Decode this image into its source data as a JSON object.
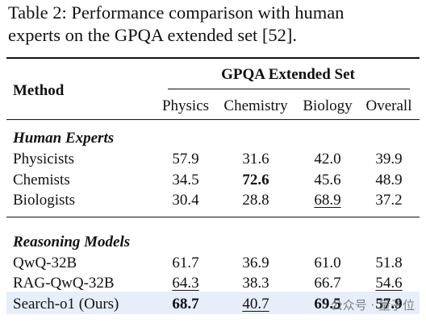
{
  "caption": {
    "lines": [
      "Table 2: Performance comparison with human",
      "experts on the GPQA extended set [52]."
    ]
  },
  "table": {
    "header": {
      "method": "Method",
      "group": "GPQA Extended Set",
      "columns": [
        "Physics",
        "Chemistry",
        "Biology",
        "Overall"
      ]
    },
    "sections": [
      {
        "title": "Human Experts",
        "rows": [
          {
            "method": "Physicists",
            "cells": [
              {
                "text": "57.9"
              },
              {
                "text": "31.6"
              },
              {
                "text": "42.0"
              },
              {
                "text": "39.9"
              }
            ]
          },
          {
            "method": "Chemists",
            "cells": [
              {
                "text": "34.5"
              },
              {
                "text": "72.6",
                "bold": true
              },
              {
                "text": "45.6"
              },
              {
                "text": "48.9"
              }
            ]
          },
          {
            "method": "Biologists",
            "cells": [
              {
                "text": "30.4"
              },
              {
                "text": "28.8"
              },
              {
                "text": "68.9",
                "underline": true
              },
              {
                "text": "37.2"
              }
            ]
          }
        ]
      },
      {
        "title": "Reasoning Models",
        "rows": [
          {
            "method": "QwQ-32B",
            "cells": [
              {
                "text": "61.7"
              },
              {
                "text": "36.9"
              },
              {
                "text": "61.0"
              },
              {
                "text": "51.8"
              }
            ]
          },
          {
            "method": "RAG-QwQ-32B",
            "cells": [
              {
                "text": "64.3",
                "underline": true
              },
              {
                "text": "38.3"
              },
              {
                "text": "66.7"
              },
              {
                "text": "54.6",
                "underline": true
              }
            ]
          },
          {
            "method": "Search-o1 (Ours)",
            "highlighted": true,
            "cells": [
              {
                "text": "68.7",
                "bold": true
              },
              {
                "text": "40.7",
                "underline": true
              },
              {
                "text": "69.5",
                "bold": true
              },
              {
                "text": "57.9",
                "bold": true
              }
            ]
          }
        ]
      }
    ]
  },
  "watermark": "公众号 · 量子位"
}
